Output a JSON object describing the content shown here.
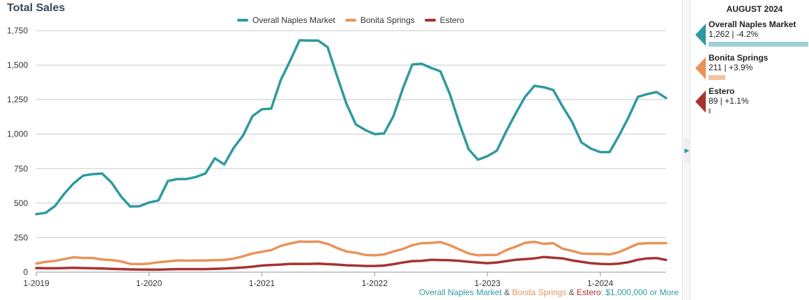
{
  "title": "Total Sales",
  "legend": [
    {
      "name": "Overall Naples Market",
      "color": "#2e9aa0"
    },
    {
      "name": "Bonita Springs",
      "color": "#e8935a"
    },
    {
      "name": "Estero",
      "color": "#a83232"
    }
  ],
  "footer": {
    "part1": "Overall Naples Market",
    "sep1": " & ",
    "part2": "Bonita Springs",
    "sep2": " & ",
    "part3": "Estero",
    "suffix": ": $1,000,000 or More"
  },
  "side_panel": {
    "title": "AUGUST 2024",
    "stats": [
      {
        "name": "Overall Naples Market",
        "value_text": "1,262 | -4.2%",
        "bar_fraction": 1.0,
        "color": "#2e9aa0",
        "bar_color": "#9fd0d2"
      },
      {
        "name": "Bonita Springs",
        "value_text": "211 | +3.9%",
        "bar_fraction": 0.167,
        "color": "#e8935a",
        "bar_color": "#f3c2a2"
      },
      {
        "name": "Estero",
        "value_text": "89 | +1.1%",
        "bar_fraction": 0.02,
        "color": "#a83232",
        "bar_color": "#d08c8c"
      }
    ]
  },
  "chart_data": {
    "type": "line",
    "title": "Total Sales",
    "xlabel": "",
    "ylabel": "",
    "ylim": [
      0,
      1750
    ],
    "yticks": [
      0,
      250,
      500,
      750,
      1000,
      1250,
      1500,
      1750
    ],
    "ytick_labels": [
      "0",
      "250",
      "500",
      "750",
      "1,000",
      "1,250",
      "1,500",
      "1,750"
    ],
    "xtick_labels": [
      "1-2019",
      "1-2020",
      "1-2021",
      "1-2022",
      "1-2023",
      "1-2024"
    ],
    "xtick_index": [
      0,
      12,
      24,
      36,
      48,
      60
    ],
    "grid": true,
    "legend_position": "top-center",
    "series": [
      {
        "name": "Overall Naples Market",
        "color": "#2e9aa0",
        "values": [
          420,
          430,
          480,
          570,
          645,
          700,
          710,
          715,
          650,
          550,
          475,
          478,
          505,
          520,
          660,
          675,
          675,
          690,
          715,
          825,
          780,
          900,
          990,
          1130,
          1180,
          1185,
          1390,
          1530,
          1680,
          1678,
          1678,
          1630,
          1420,
          1220,
          1070,
          1030,
          1000,
          1005,
          1130,
          1330,
          1505,
          1510,
          1480,
          1455,
          1290,
          1080,
          890,
          815,
          840,
          880,
          1020,
          1150,
          1270,
          1350,
          1340,
          1320,
          1200,
          1090,
          940,
          895,
          870,
          870,
          990,
          1120,
          1270,
          1290,
          1305,
          1262
        ]
      },
      {
        "name": "Bonita Springs",
        "color": "#e8935a",
        "values": [
          62,
          75,
          82,
          95,
          108,
          103,
          103,
          92,
          88,
          78,
          60,
          58,
          62,
          72,
          78,
          85,
          83,
          84,
          84,
          87,
          89,
          98,
          115,
          135,
          148,
          160,
          190,
          208,
          222,
          220,
          222,
          205,
          175,
          150,
          140,
          125,
          122,
          128,
          150,
          168,
          195,
          210,
          212,
          218,
          195,
          165,
          135,
          122,
          125,
          125,
          160,
          185,
          212,
          220,
          205,
          210,
          170,
          155,
          135,
          132,
          133,
          128,
          145,
          175,
          205,
          210,
          210,
          211
        ]
      },
      {
        "name": "Estero",
        "color": "#a83232",
        "values": [
          30,
          28,
          28,
          30,
          32,
          30,
          28,
          26,
          24,
          22,
          20,
          19,
          18,
          18,
          20,
          22,
          22,
          22,
          22,
          24,
          26,
          30,
          34,
          40,
          48,
          52,
          55,
          60,
          60,
          60,
          62,
          58,
          55,
          50,
          48,
          45,
          45,
          48,
          58,
          70,
          80,
          82,
          90,
          88,
          86,
          82,
          75,
          70,
          65,
          70,
          80,
          90,
          95,
          100,
          110,
          105,
          100,
          85,
          75,
          65,
          60,
          58,
          62,
          72,
          90,
          100,
          102,
          89
        ]
      }
    ]
  }
}
